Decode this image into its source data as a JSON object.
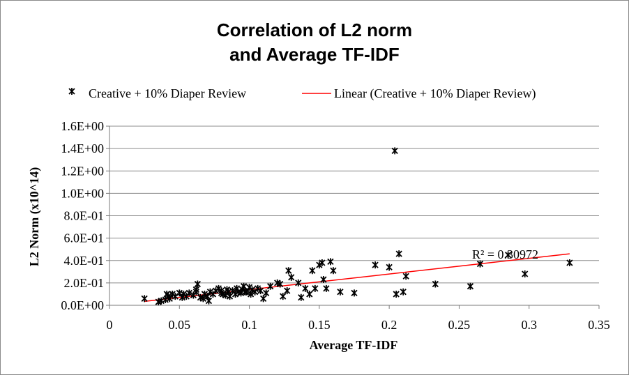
{
  "chart_data": {
    "type": "scatter",
    "title_lines": [
      "Correlation of L2 norm",
      "and Average TF-IDF"
    ],
    "xlabel": "Average TF-IDF",
    "ylabel": "L2 Norm (x10^14)",
    "xlim": [
      0,
      0.35
    ],
    "ylim": [
      0,
      1.6
    ],
    "x_ticks": [
      {
        "value": 0,
        "label": "0"
      },
      {
        "value": 0.05,
        "label": "0.05"
      },
      {
        "value": 0.1,
        "label": "0.1"
      },
      {
        "value": 0.15,
        "label": "0.15"
      },
      {
        "value": 0.2,
        "label": "0.2"
      },
      {
        "value": 0.25,
        "label": "0.25"
      },
      {
        "value": 0.3,
        "label": "0.3"
      },
      {
        "value": 0.35,
        "label": "0.35"
      }
    ],
    "y_ticks": [
      {
        "value": 0,
        "label": "0.0E+00"
      },
      {
        "value": 0.2,
        "label": "2.0E-01"
      },
      {
        "value": 0.4,
        "label": "4.0E-01"
      },
      {
        "value": 0.6,
        "label": "6.0E-01"
      },
      {
        "value": 0.8,
        "label": "8.0E-01"
      },
      {
        "value": 1.0,
        "label": "1.0E+00"
      },
      {
        "value": 1.2,
        "label": "1.2E+00"
      },
      {
        "value": 1.4,
        "label": "1.4E+00"
      },
      {
        "value": 1.6,
        "label": "1.6E+00"
      }
    ],
    "grid": {
      "horizontal": true,
      "vertical": false
    },
    "legend_position": "top",
    "series": [
      {
        "name": "Creative + 10% Diaper Review",
        "marker": "star",
        "color": "#000000",
        "x": [
          0.025,
          0.035,
          0.037,
          0.04,
          0.041,
          0.042,
          0.043,
          0.045,
          0.047,
          0.05,
          0.052,
          0.053,
          0.055,
          0.057,
          0.06,
          0.062,
          0.063,
          0.065,
          0.067,
          0.068,
          0.07,
          0.071,
          0.072,
          0.074,
          0.076,
          0.078,
          0.08,
          0.081,
          0.083,
          0.084,
          0.085,
          0.086,
          0.088,
          0.09,
          0.091,
          0.092,
          0.094,
          0.095,
          0.096,
          0.098,
          0.1,
          0.101,
          0.102,
          0.104,
          0.106,
          0.108,
          0.11,
          0.112,
          0.115,
          0.12,
          0.122,
          0.124,
          0.127,
          0.128,
          0.13,
          0.135,
          0.137,
          0.14,
          0.143,
          0.145,
          0.147,
          0.15,
          0.152,
          0.153,
          0.155,
          0.158,
          0.16,
          0.165,
          0.175,
          0.19,
          0.2,
          0.205,
          0.207,
          0.21,
          0.212,
          0.204,
          0.233,
          0.258,
          0.265,
          0.285,
          0.297,
          0.329,
          0.062,
          0.08,
          0.097
        ],
        "y": [
          0.06,
          0.03,
          0.04,
          0.05,
          0.1,
          0.08,
          0.06,
          0.1,
          0.08,
          0.11,
          0.07,
          0.1,
          0.08,
          0.11,
          0.09,
          0.12,
          0.19,
          0.07,
          0.06,
          0.1,
          0.08,
          0.04,
          0.12,
          0.1,
          0.13,
          0.15,
          0.11,
          0.1,
          0.09,
          0.14,
          0.12,
          0.08,
          0.13,
          0.1,
          0.15,
          0.12,
          0.11,
          0.14,
          0.17,
          0.12,
          0.16,
          0.1,
          0.14,
          0.12,
          0.15,
          0.13,
          0.06,
          0.11,
          0.17,
          0.2,
          0.19,
          0.08,
          0.13,
          0.31,
          0.25,
          0.2,
          0.07,
          0.15,
          0.1,
          0.31,
          0.15,
          0.36,
          0.38,
          0.23,
          0.15,
          0.39,
          0.31,
          0.12,
          0.11,
          0.36,
          0.34,
          0.1,
          0.46,
          0.12,
          0.26,
          1.38,
          0.19,
          0.17,
          0.37,
          0.45,
          0.28,
          0.38,
          0.14,
          0.13,
          0.12
        ]
      }
    ],
    "trendline": {
      "name": "Linear (Creative + 10% Diaper Review)",
      "color": "#ff0000",
      "x": [
        0.025,
        0.329
      ],
      "y": [
        0.035,
        0.46
      ],
      "r_squared_text": "R² = 0.30972"
    }
  }
}
